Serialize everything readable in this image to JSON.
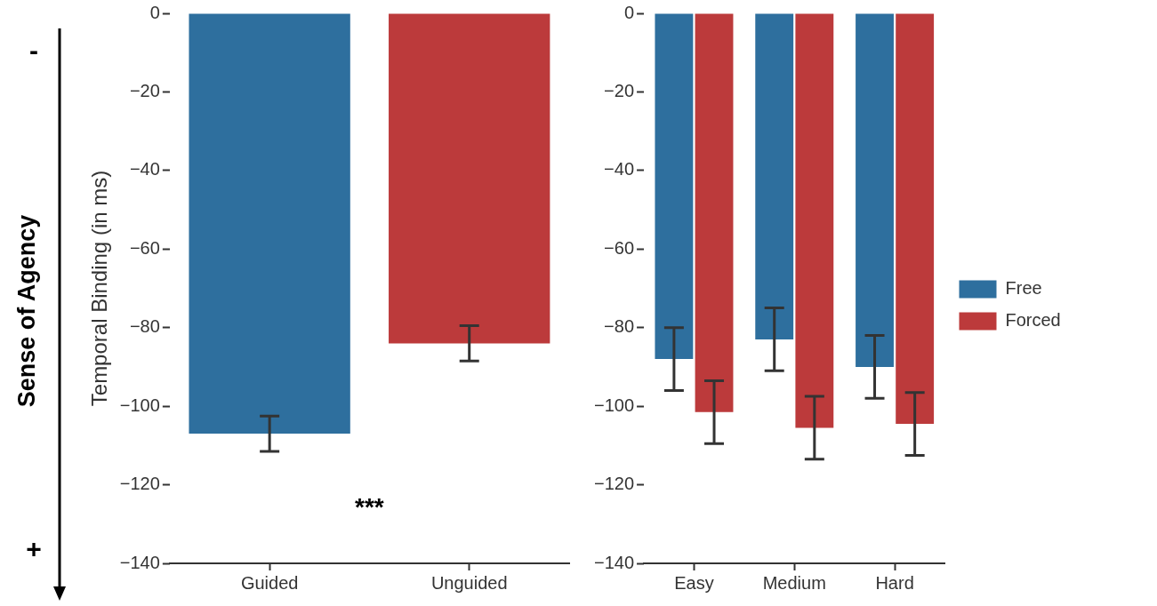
{
  "chart_data": [
    {
      "type": "bar",
      "ylabel": "Temporal Binding (in ms)",
      "categories": [
        "Guided",
        "Unguided"
      ],
      "values": [
        -107,
        -84
      ],
      "errors": [
        4.5,
        4.5
      ],
      "colors": [
        "#2e6f9e",
        "#bc3a3b"
      ],
      "ylim": [
        -140,
        0
      ],
      "yticks": [
        0,
        -20,
        -40,
        -60,
        -80,
        -100,
        -120,
        -140
      ],
      "grid": false,
      "legend": false,
      "annotations": [
        "***",
        "Sense of Agency",
        "-",
        "+"
      ]
    },
    {
      "type": "bar",
      "categories": [
        "Easy",
        "Medium",
        "Hard"
      ],
      "ylim": [
        -140,
        0
      ],
      "yticks": [
        0,
        -20,
        -40,
        -60,
        -80,
        -100,
        -120,
        -140
      ],
      "grid": false,
      "legend": "right",
      "series": [
        {
          "name": "Free",
          "color": "#2e6f9e",
          "values": [
            -88,
            -83,
            -90
          ],
          "errors": [
            8,
            8,
            8
          ]
        },
        {
          "name": "Forced",
          "color": "#bc3a3b",
          "values": [
            -101.5,
            -105.5,
            -104.5
          ],
          "errors": [
            8,
            8,
            8
          ]
        }
      ]
    }
  ]
}
